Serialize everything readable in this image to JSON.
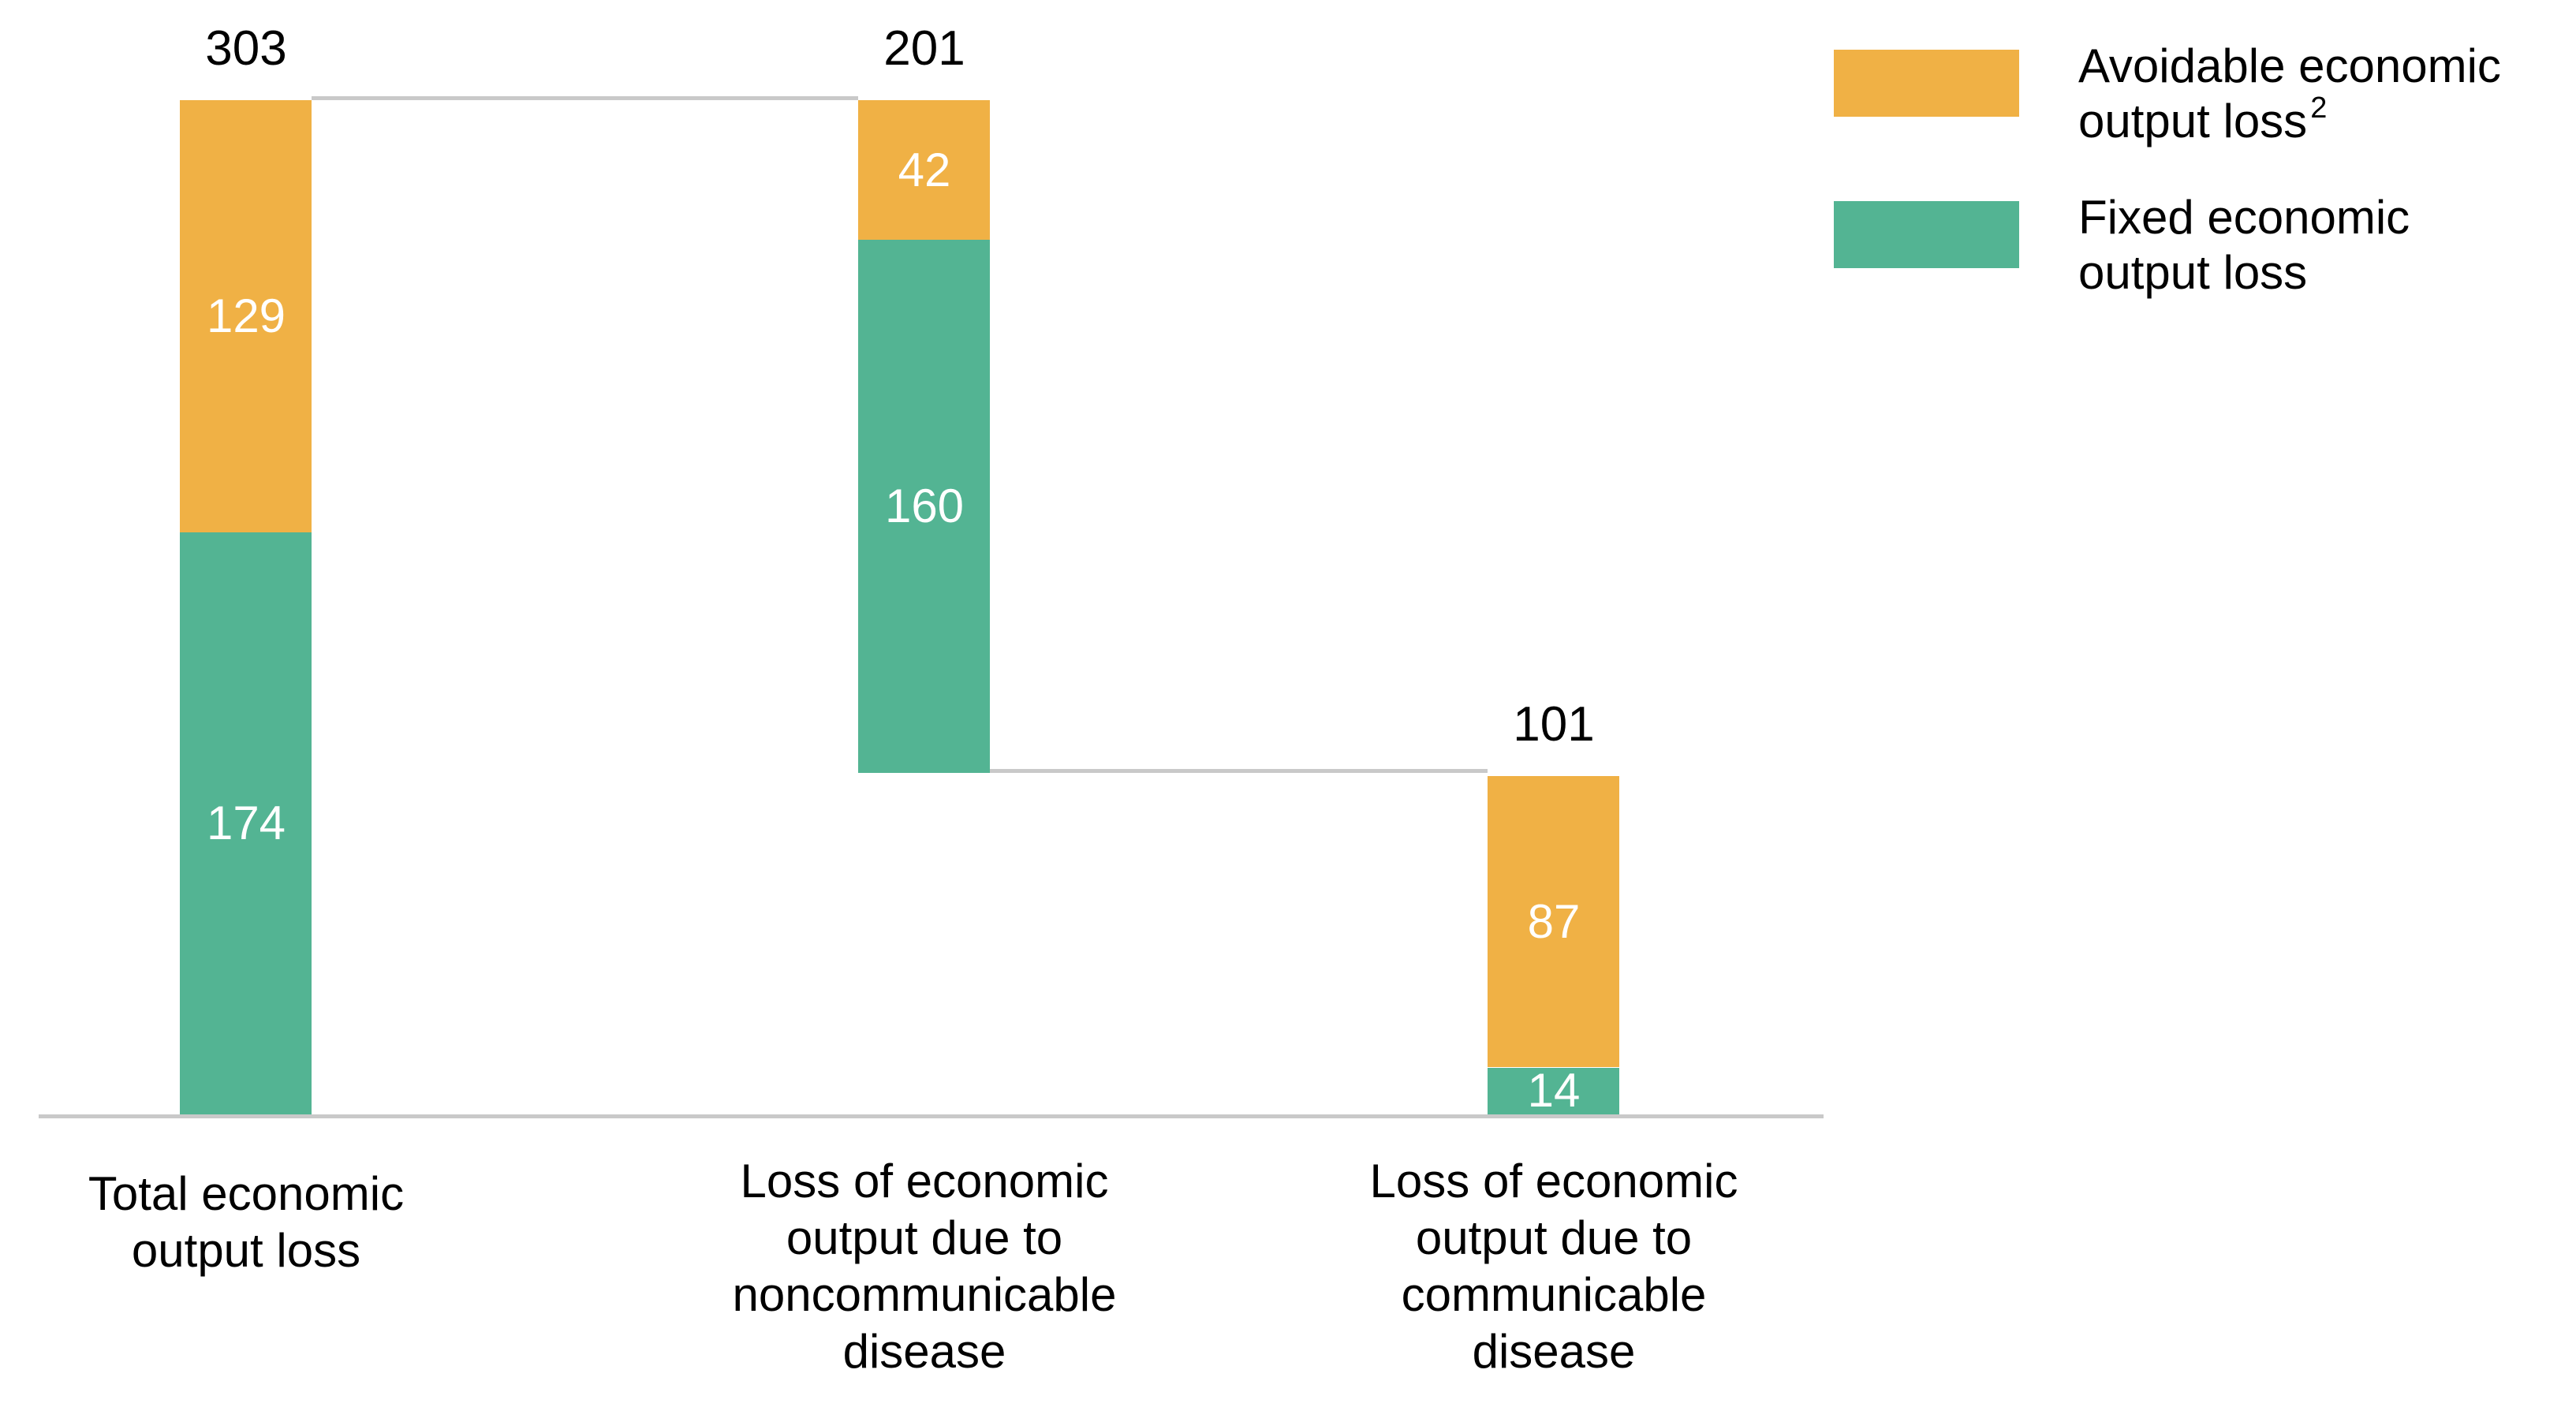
{
  "chart_data": {
    "type": "bar",
    "subtype": "stacked_waterfall",
    "orientation": "vertical",
    "title": "",
    "categories": [
      "Total economic\noutput loss",
      "Loss of economic\noutput due to\nnoncommunicable\ndisease",
      "Loss of economic\noutput due to\ncommunicable\ndisease"
    ],
    "series": [
      {
        "name": "Avoidable economic output loss",
        "color": "#F0B145",
        "values": [
          129,
          42,
          87
        ]
      },
      {
        "name": "Fixed economic output loss",
        "color": "#53B493",
        "values": [
          174,
          160,
          14
        ]
      }
    ],
    "totals": [
      303,
      201,
      101
    ],
    "bar_levels": [
      {
        "top": 303,
        "bottom": 0
      },
      {
        "top": 303,
        "bottom": 102
      },
      {
        "top": 101,
        "bottom": 0
      }
    ],
    "ylim": [
      0,
      303
    ],
    "gridlines": false,
    "baseline_axis_visible": true,
    "value_label_placement": "totals above bars, segment values inside segments",
    "legend_position": "top-right"
  },
  "legend": {
    "items": [
      {
        "line1": "Avoidable economic",
        "line2": "output loss",
        "sup": "2",
        "key": "avoidable"
      },
      {
        "line1": "Fixed economic",
        "line2": "output loss",
        "sup": "",
        "key": "fixed"
      }
    ]
  },
  "colors": {
    "avoidable": "#F0B145",
    "fixed": "#53B493",
    "line": "#C9C9C9",
    "text": "#000000",
    "value_text": "#FFFFFF",
    "background": "#FFFFFF"
  }
}
